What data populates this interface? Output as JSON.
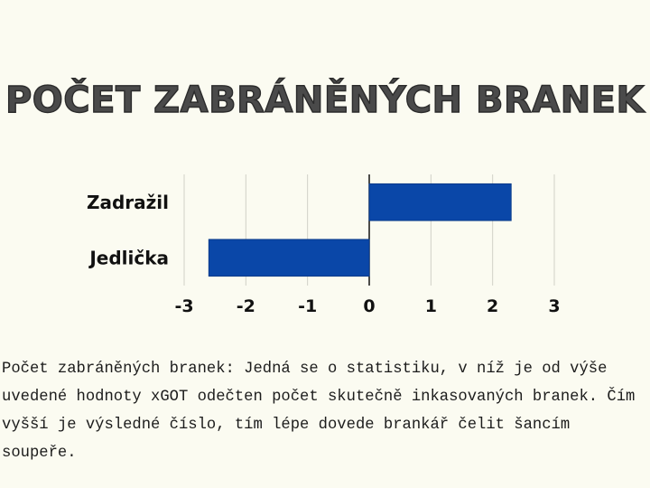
{
  "chart_data": {
    "type": "bar",
    "orientation": "horizontal",
    "title": "Počet zabráněných branek",
    "categories": [
      "Zadražil",
      "Jedlička"
    ],
    "values": [
      2.3,
      -2.6
    ],
    "xlim": [
      -3,
      3
    ],
    "xticks": [
      "-3",
      "-2",
      "-1",
      "0",
      "1",
      "2",
      "3"
    ],
    "grid": true,
    "bar_color": "#0a47a8"
  },
  "description": "Počet zabráněných branek: Jedná se o statistiku, v níž je od výše uvedené hodnoty xGOT odečten počet skutečně inkasovaných branek. Čím vyšší je výsledné číslo, tím lépe dovede brankář čelit šancím soupeře."
}
